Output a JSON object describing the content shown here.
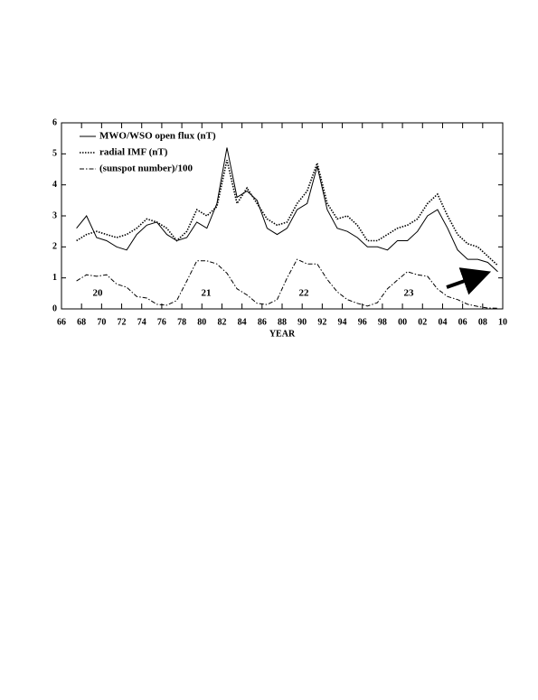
{
  "chart_data": {
    "type": "line",
    "xlabel": "YEAR",
    "x": [
      1967.5,
      1968.5,
      1969.5,
      1970.5,
      1971.5,
      1972.5,
      1973.5,
      1974.5,
      1975.5,
      1976.5,
      1977.5,
      1978.5,
      1979.5,
      1980.5,
      1981.5,
      1982.5,
      1983.5,
      1984.5,
      1985.5,
      1986.5,
      1987.5,
      1988.5,
      1989.5,
      1990.5,
      1991.5,
      1992.5,
      1993.5,
      1994.5,
      1995.5,
      1996.5,
      1997.5,
      1998.5,
      1999.5,
      2000.5,
      2001.5,
      2002.5,
      2003.5,
      2004.5,
      2005.5,
      2006.5,
      2007.5,
      2008.5,
      2009.5
    ],
    "series": [
      {
        "name": "MWO/WSO open flux (nT)",
        "color": "#000000",
        "style": "solid",
        "values": [
          2.6,
          3.0,
          2.3,
          2.2,
          2.0,
          1.9,
          2.4,
          2.7,
          2.8,
          2.4,
          2.2,
          2.3,
          2.8,
          2.6,
          3.4,
          5.2,
          3.6,
          3.8,
          3.5,
          2.6,
          2.4,
          2.6,
          3.2,
          3.4,
          4.6,
          3.2,
          2.6,
          2.5,
          2.3,
          2.0,
          2.0,
          1.9,
          2.2,
          2.2,
          2.5,
          3.0,
          3.2,
          2.6,
          1.9,
          1.6,
          1.6,
          1.5,
          1.2
        ]
      },
      {
        "name": "radial IMF (nT)",
        "color": "#000000",
        "style": "dotted",
        "values": [
          2.2,
          2.4,
          2.5,
          2.4,
          2.3,
          2.4,
          2.6,
          2.9,
          2.8,
          2.6,
          2.2,
          2.5,
          3.2,
          3.0,
          3.3,
          4.8,
          3.4,
          3.9,
          3.4,
          2.9,
          2.7,
          2.8,
          3.4,
          3.8,
          4.7,
          3.4,
          2.9,
          3.0,
          2.7,
          2.2,
          2.2,
          2.4,
          2.6,
          2.7,
          2.9,
          3.4,
          3.7,
          3.0,
          2.4,
          2.1,
          2.0,
          1.7,
          1.4
        ]
      },
      {
        "name": "(sunspot number)/100",
        "color": "#000000",
        "style": "dashdot",
        "values": [
          0.9,
          1.1,
          1.05,
          1.1,
          0.8,
          0.7,
          0.4,
          0.35,
          0.15,
          0.12,
          0.27,
          0.9,
          1.55,
          1.55,
          1.45,
          1.15,
          0.65,
          0.45,
          0.18,
          0.14,
          0.3,
          1.0,
          1.6,
          1.45,
          1.45,
          0.95,
          0.55,
          0.3,
          0.18,
          0.09,
          0.2,
          0.65,
          0.93,
          1.2,
          1.1,
          1.05,
          0.64,
          0.4,
          0.3,
          0.15,
          0.08,
          0.03,
          0.02
        ]
      }
    ],
    "annotations": [
      "20",
      "21",
      "22",
      "23"
    ],
    "xlim": [
      1966,
      2010
    ],
    "xticks": [
      {
        "value": 1966,
        "label": "66"
      },
      {
        "value": 1968,
        "label": "68"
      },
      {
        "value": 1970,
        "label": "70"
      },
      {
        "value": 1972,
        "label": "72"
      },
      {
        "value": 1974,
        "label": "74"
      },
      {
        "value": 1976,
        "label": "76"
      },
      {
        "value": 1978,
        "label": "78"
      },
      {
        "value": 1980,
        "label": "80"
      },
      {
        "value": 1982,
        "label": "82"
      },
      {
        "value": 1984,
        "label": "84"
      },
      {
        "value": 1986,
        "label": "86"
      },
      {
        "value": 1988,
        "label": "88"
      },
      {
        "value": 1990,
        "label": "90"
      },
      {
        "value": 1992,
        "label": "92"
      },
      {
        "value": 1994,
        "label": "94"
      },
      {
        "value": 1996,
        "label": "96"
      },
      {
        "value": 1998,
        "label": "98"
      },
      {
        "value": 2000,
        "label": "00"
      },
      {
        "value": 2002,
        "label": "02"
      },
      {
        "value": 2004,
        "label": "04"
      },
      {
        "value": 2006,
        "label": "06"
      },
      {
        "value": 2008,
        "label": "08"
      },
      {
        "value": 2010,
        "label": "10"
      }
    ],
    "ylim": [
      0,
      6
    ],
    "yticks": [
      0,
      1,
      2,
      3,
      4,
      5,
      6
    ],
    "grid": false,
    "legend": "upper left"
  }
}
